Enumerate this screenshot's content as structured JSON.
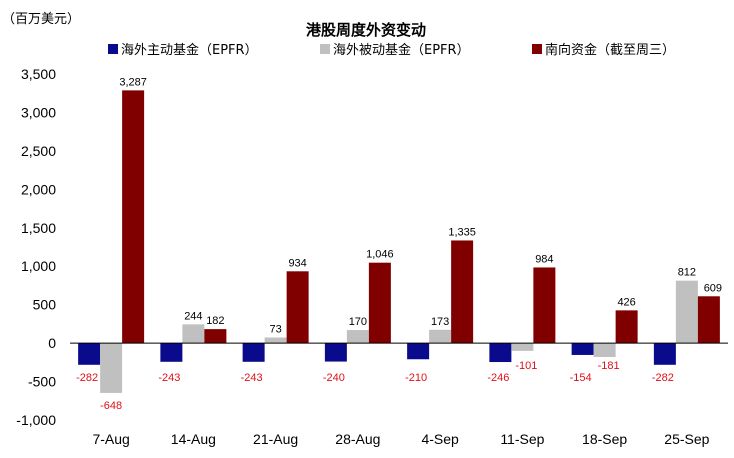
{
  "chart_data": {
    "type": "bar",
    "title": "港股周度外资变动",
    "unit_label": "（百万美元）",
    "categories": [
      "7-Aug",
      "14-Aug",
      "21-Aug",
      "28-Aug",
      "4-Sep",
      "11-Sep",
      "18-Sep",
      "25-Sep"
    ],
    "series": [
      {
        "name": "海外主动基金（EPFR）",
        "color": "#0a0a8c",
        "values": [
          -282,
          -243,
          -243,
          -240,
          -210,
          -246,
          -154,
          -282
        ]
      },
      {
        "name": "海外被动基金（EPFR）",
        "color": "#c0c0c0",
        "values": [
          -648,
          244,
          73,
          170,
          173,
          -101,
          -181,
          812
        ]
      },
      {
        "name": "南向资金（截至周三）",
        "color": "#800000",
        "values": [
          3287,
          182,
          934,
          1046,
          1335,
          984,
          426,
          609
        ]
      }
    ],
    "ylim": [
      -1000,
      3500
    ],
    "yticks": [
      -1000,
      -500,
      0,
      500,
      1000,
      1500,
      2000,
      2500,
      3000,
      3500
    ],
    "ytick_labels": [
      "-1,000",
      "-500",
      "0",
      "500",
      "1,000",
      "1,500",
      "2,000",
      "2,500",
      "3,000",
      "3,500"
    ],
    "data_labels": [
      [
        "-282",
        "-243",
        "-243",
        "-240",
        "-210",
        "-246",
        "-154",
        "-282"
      ],
      [
        "-648",
        "244",
        "73",
        "170",
        "173",
        "-101",
        "-181",
        "812"
      ],
      [
        "3,287",
        "182",
        "934",
        "1,046",
        "1,335",
        "984",
        "426",
        "609"
      ]
    ],
    "negative_label_color": "#e0101a",
    "grid": false,
    "legend_position": "top"
  }
}
